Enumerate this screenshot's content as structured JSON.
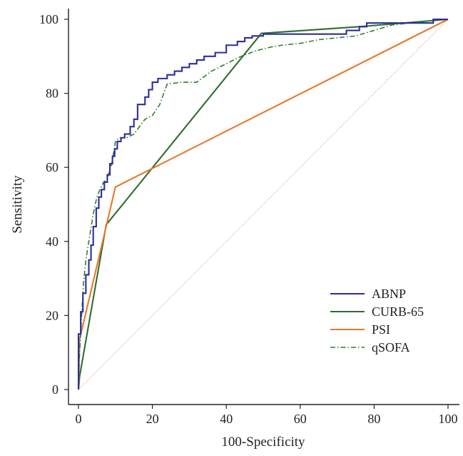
{
  "chart_data": {
    "type": "line",
    "title": "",
    "xlabel": "100-Specificity",
    "ylabel": "Sensitivity",
    "xlim": [
      0,
      100
    ],
    "ylim": [
      0,
      100
    ],
    "x_ticks": [
      "0",
      "20",
      "40",
      "60",
      "80",
      "100"
    ],
    "y_ticks": [
      "0",
      "20",
      "40",
      "60",
      "80",
      "100"
    ],
    "grid": false,
    "legend_position": "bottom-right",
    "reference_line": {
      "x": [
        0,
        100
      ],
      "y": [
        0,
        100
      ],
      "color": "#d8a0a0",
      "style": "dotted"
    },
    "series": [
      {
        "name": "ABNP",
        "color": "#2e2e9a",
        "style": "solid",
        "step": true,
        "x": [
          0,
          0,
          0.6,
          0.6,
          1.2,
          1.2,
          2,
          2,
          2.8,
          2.8,
          3.4,
          3.4,
          4,
          4,
          4.8,
          4.8,
          5.5,
          5.5,
          6.2,
          6.2,
          7,
          7,
          7.8,
          7.8,
          8.5,
          8.5,
          9.2,
          9.2,
          9.8,
          9.8,
          10.5,
          10.5,
          11.5,
          11.5,
          12.5,
          12.5,
          14,
          14,
          15,
          15,
          16,
          16,
          18,
          18,
          19,
          19,
          20,
          20,
          21.5,
          21.5,
          24,
          24,
          26,
          26,
          28,
          28,
          30,
          30,
          32,
          32,
          34,
          34,
          37,
          37,
          40,
          40,
          43,
          43,
          45,
          45,
          47,
          47,
          50,
          50,
          72.5,
          72.5,
          76,
          76,
          78,
          78,
          96,
          96,
          100
        ],
        "y": [
          0,
          15,
          15,
          21,
          21,
          26,
          26,
          31,
          31,
          35,
          35,
          39,
          39,
          44,
          44,
          49,
          49,
          52,
          52,
          54,
          54,
          56,
          56,
          58,
          58,
          61,
          61,
          63,
          63,
          65,
          65,
          67,
          67,
          68,
          68,
          69,
          69,
          71,
          71,
          73,
          73,
          77,
          77,
          79,
          79,
          81,
          81,
          83,
          83,
          84,
          84,
          85,
          85,
          86,
          86,
          87,
          87,
          88,
          88,
          89,
          89,
          90,
          90,
          91,
          91,
          93,
          93,
          94,
          94,
          95,
          95,
          95.5,
          95.5,
          96,
          96,
          97,
          97,
          98,
          98,
          99,
          99,
          100,
          100
        ]
      },
      {
        "name": "CURB-65",
        "color": "#2e6e2e",
        "style": "solid",
        "step": false,
        "x": [
          0,
          0.3,
          7.5,
          49.5,
          76,
          100
        ],
        "y": [
          0,
          3.5,
          44.5,
          96.2,
          98,
          100
        ]
      },
      {
        "name": "PSI",
        "color": "#e8782a",
        "style": "solid",
        "step": false,
        "x": [
          0,
          0.3,
          10,
          100
        ],
        "y": [
          0,
          13.5,
          54.7,
          100
        ]
      },
      {
        "name": "qSOFA",
        "color": "#2e7e2e",
        "style": "dash-dot",
        "step": false,
        "x": [
          0,
          0.2,
          0.7,
          1.3,
          2,
          2.8,
          3.6,
          4.3,
          5,
          5.8,
          6.8,
          7.8,
          9,
          10,
          11,
          13,
          15,
          16.5,
          18,
          20,
          22,
          24,
          28,
          32,
          36,
          40,
          44,
          48,
          52,
          55,
          60,
          65,
          70,
          75,
          80,
          85,
          90,
          95,
          100
        ],
        "y": [
          0,
          8,
          17,
          28,
          35,
          40,
          45,
          49,
          52,
          54,
          56,
          57,
          61,
          67,
          68,
          68,
          69,
          71,
          73,
          74,
          77,
          82.5,
          83,
          83,
          86,
          88,
          90,
          91.5,
          92.5,
          93,
          93.5,
          94.5,
          95,
          95.5,
          97,
          98.5,
          99,
          99.5,
          100
        ]
      }
    ]
  }
}
